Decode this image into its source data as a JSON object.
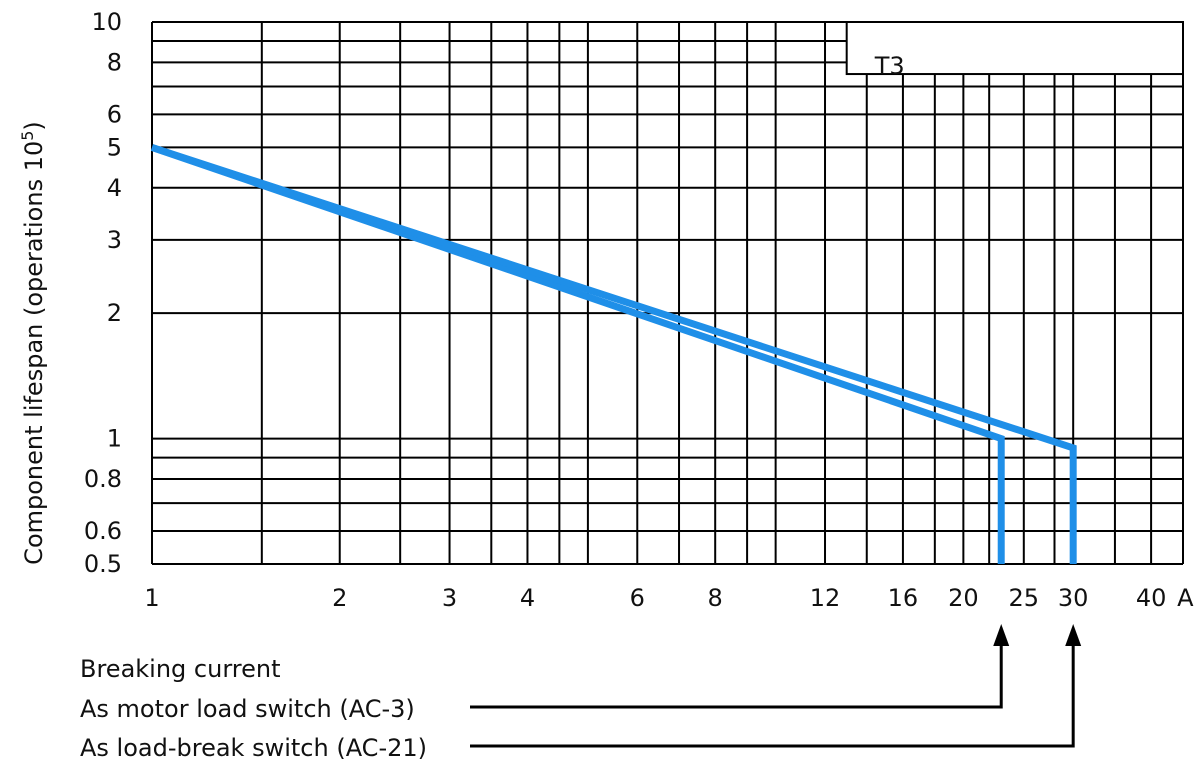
{
  "chart_data": {
    "type": "line",
    "scale": {
      "x": "log",
      "y": "log"
    },
    "xlim": [
      1,
      45
    ],
    "ylim": [
      0.5,
      10
    ],
    "x_grid": [
      1,
      1.5,
      2,
      2.5,
      3,
      3.5,
      4,
      4.5,
      5,
      6,
      7,
      8,
      9,
      10,
      12,
      14,
      16,
      18,
      20,
      22,
      25,
      28,
      30,
      35,
      40,
      45
    ],
    "y_grid": [
      0.5,
      0.6,
      0.7,
      0.8,
      0.9,
      1,
      2,
      3,
      4,
      5,
      6,
      7,
      8,
      9,
      10
    ],
    "x_ticks": [
      {
        "value": 1,
        "label": "1"
      },
      {
        "value": 2,
        "label": "2"
      },
      {
        "value": 3,
        "label": "3"
      },
      {
        "value": 4,
        "label": "4"
      },
      {
        "value": 6,
        "label": "6"
      },
      {
        "value": 8,
        "label": "8"
      },
      {
        "value": 12,
        "label": "12"
      },
      {
        "value": 16,
        "label": "16"
      },
      {
        "value": 20,
        "label": "20"
      },
      {
        "value": 25,
        "label": "25"
      },
      {
        "value": 30,
        "label": "30"
      },
      {
        "value": 40,
        "label": "40"
      }
    ],
    "x_unit": "A",
    "y_ticks": [
      {
        "value": 10,
        "label": "10"
      },
      {
        "value": 8,
        "label": "8"
      },
      {
        "value": 6,
        "label": "6"
      },
      {
        "value": 5,
        "label": "5"
      },
      {
        "value": 4,
        "label": "4"
      },
      {
        "value": 3,
        "label": "3"
      },
      {
        "value": 2,
        "label": "2"
      },
      {
        "value": 1,
        "label": "1"
      },
      {
        "value": 0.8,
        "label": "0.8"
      },
      {
        "value": 0.6,
        "label": "0.6"
      },
      {
        "value": 0.5,
        "label": "0.5"
      }
    ],
    "ylabel_main": "Component lifespan (operations 10",
    "ylabel_sup": "5",
    "ylabel_end": ")",
    "box_label": "T3",
    "line_color": "#1f8fe8",
    "series": [
      {
        "name": "As motor load switch (AC-3)",
        "x": [
          1,
          23
        ],
        "y": [
          5,
          1
        ],
        "drop_to": 0.5
      },
      {
        "name": "As load-break switch (AC-21)",
        "x": [
          1,
          30
        ],
        "y": [
          5,
          0.95
        ],
        "drop_to": 0.5
      }
    ],
    "annotation_title": "Breaking current"
  }
}
